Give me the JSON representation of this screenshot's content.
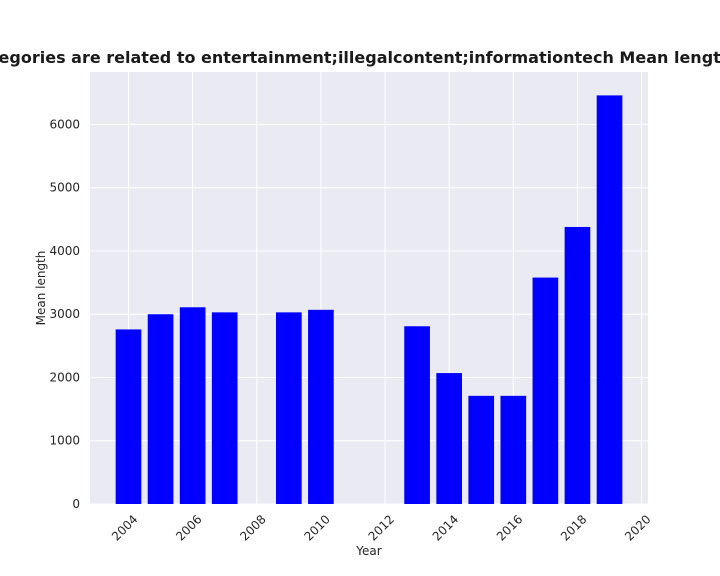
{
  "chart_data": {
    "type": "bar",
    "title": "Websites whose categories are related to entertainment;illegalcontent;informationtech Mean length in privacy policies",
    "xlabel": "Year",
    "ylabel": "Mean length",
    "x": [
      2004,
      2005,
      2006,
      2007,
      2009,
      2010,
      2013,
      2014,
      2015,
      2016,
      2017,
      2018,
      2019
    ],
    "values": [
      2760,
      3000,
      3110,
      3030,
      3030,
      3070,
      2810,
      2070,
      1710,
      1710,
      3580,
      4380,
      6460
    ],
    "xlim": [
      2002.8,
      2020.2
    ],
    "ylim": [
      0,
      6830
    ],
    "xticks": [
      2004,
      2006,
      2008,
      2010,
      2012,
      2014,
      2016,
      2018,
      2020
    ],
    "yticks": [
      0,
      1000,
      2000,
      3000,
      4000,
      5000,
      6000
    ],
    "bar_color": "#0000ff",
    "plot_background": "#eaeaf2",
    "grid": true,
    "legend": "none"
  }
}
